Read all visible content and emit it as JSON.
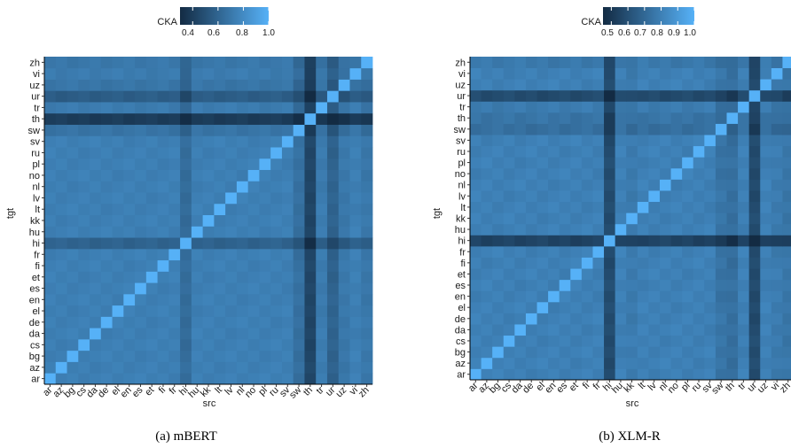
{
  "charts": [
    {
      "caption": "(a) mBERT",
      "legend_title": "CKA",
      "legend_ticks": [
        "0.4",
        "0.6",
        "0.8",
        "1.0"
      ],
      "legend_tick_values": [
        0.4,
        0.6,
        0.8,
        1.0
      ],
      "xlabel": "src",
      "ylabel": "tgt"
    },
    {
      "caption": "(b) XLM-R",
      "legend_title": "CKA",
      "legend_ticks": [
        "0.5",
        "0.6",
        "0.7",
        "0.8",
        "0.9",
        "1.0"
      ],
      "legend_tick_values": [
        0.5,
        0.6,
        0.7,
        0.8,
        0.9,
        1.0
      ],
      "xlabel": "src",
      "ylabel": "tgt"
    }
  ],
  "chart_data": [
    {
      "type": "heatmap",
      "name": "mBERT",
      "categories": [
        "ar",
        "az",
        "bg",
        "cs",
        "da",
        "de",
        "el",
        "en",
        "es",
        "et",
        "fi",
        "fr",
        "hi",
        "hu",
        "kk",
        "lt",
        "lv",
        "nl",
        "no",
        "pl",
        "ru",
        "sv",
        "sw",
        "th",
        "tr",
        "ur",
        "uz",
        "vi",
        "zh"
      ],
      "x": [
        "ar",
        "az",
        "bg",
        "cs",
        "da",
        "de",
        "el",
        "en",
        "es",
        "et",
        "fi",
        "fr",
        "hi",
        "hu",
        "kk",
        "lt",
        "lv",
        "nl",
        "no",
        "pl",
        "ru",
        "sv",
        "sw",
        "th",
        "tr",
        "ur",
        "uz",
        "vi",
        "zh"
      ],
      "y": [
        "ar",
        "az",
        "bg",
        "cs",
        "da",
        "de",
        "el",
        "en",
        "es",
        "et",
        "fi",
        "fr",
        "hi",
        "hu",
        "kk",
        "lt",
        "lv",
        "nl",
        "no",
        "pl",
        "ru",
        "sv",
        "sw",
        "th",
        "tr",
        "ur",
        "uz",
        "vi",
        "zh"
      ],
      "value_range": [
        0.3,
        1.0
      ],
      "diagonal": 1.0,
      "base": 0.74,
      "src_effect": {
        "hi": -0.1,
        "th": -0.3,
        "sw": -0.08,
        "ur": -0.15,
        "zh": -0.04,
        "tr": -0.02,
        "uz": -0.04
      },
      "tgt_effect": {
        "th": -0.35,
        "ur": -0.18,
        "hi": -0.15,
        "sw": -0.06,
        "uz": -0.05,
        "zh": -0.04,
        "vi": -0.02,
        "tr": -0.02
      },
      "xlabel": "src",
      "ylabel": "tgt",
      "title": ""
    },
    {
      "type": "heatmap",
      "name": "XLM-R",
      "categories": [
        "ar",
        "az",
        "bg",
        "cs",
        "da",
        "de",
        "el",
        "en",
        "es",
        "et",
        "fi",
        "fr",
        "hi",
        "hu",
        "kk",
        "lt",
        "lv",
        "nl",
        "no",
        "pl",
        "ru",
        "sv",
        "sw",
        "th",
        "tr",
        "ur",
        "uz",
        "vi",
        "zh"
      ],
      "x": [
        "ar",
        "az",
        "bg",
        "cs",
        "da",
        "de",
        "el",
        "en",
        "es",
        "et",
        "fi",
        "fr",
        "hi",
        "hu",
        "kk",
        "lt",
        "lv",
        "nl",
        "no",
        "pl",
        "ru",
        "sv",
        "sw",
        "th",
        "tr",
        "ur",
        "uz",
        "vi",
        "zh"
      ],
      "y": [
        "ar",
        "az",
        "bg",
        "cs",
        "da",
        "de",
        "el",
        "en",
        "es",
        "et",
        "fi",
        "fr",
        "hi",
        "hu",
        "kk",
        "lt",
        "lv",
        "nl",
        "no",
        "pl",
        "ru",
        "sv",
        "sw",
        "th",
        "tr",
        "ur",
        "uz",
        "vi",
        "zh"
      ],
      "value_range": [
        0.45,
        1.0
      ],
      "diagonal": 1.0,
      "base": 0.8,
      "src_effect": {
        "hi": -0.22,
        "ur": -0.22,
        "sw": -0.05,
        "th": -0.07,
        "kk": -0.02,
        "zh": -0.04,
        "vi": -0.02
      },
      "tgt_effect": {
        "hi": -0.25,
        "ur": -0.22,
        "sw": -0.07,
        "th": -0.05,
        "zh": -0.03,
        "tr": -0.02
      },
      "xlabel": "src",
      "ylabel": "tgt",
      "title": ""
    }
  ]
}
